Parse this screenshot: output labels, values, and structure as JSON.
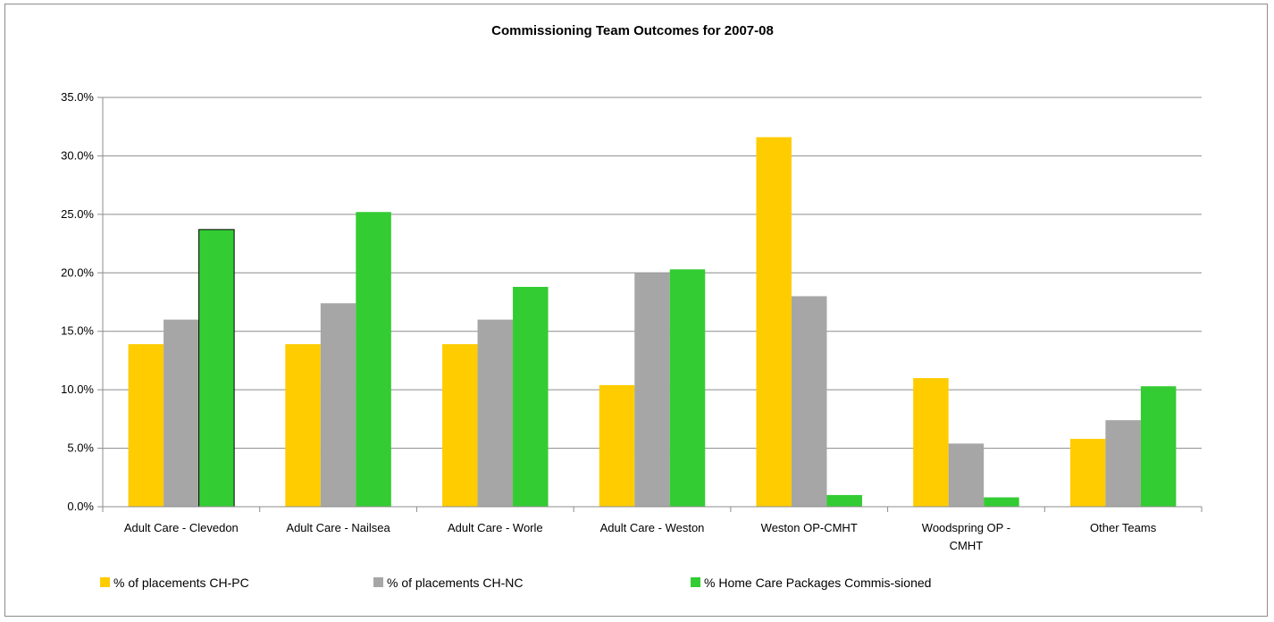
{
  "chart_data": {
    "type": "bar",
    "title": "Commissioning Team Outcomes for 2007-08",
    "xlabel": "",
    "ylabel": "",
    "ylim": [
      0,
      35
    ],
    "yticks": [
      "0.0%",
      "5.0%",
      "10.0%",
      "15.0%",
      "20.0%",
      "25.0%",
      "30.0%",
      "35.0%"
    ],
    "grid": true,
    "legend_position": "bottom",
    "categories": [
      [
        "Adult Care - Clevedon"
      ],
      [
        "Adult Care - Nailsea"
      ],
      [
        "Adult Care - Worle"
      ],
      [
        "Adult Care - Weston"
      ],
      [
        "Weston OP-CMHT"
      ],
      [
        "Woodspring OP -",
        "CMHT"
      ],
      [
        "Other Teams"
      ]
    ],
    "series": [
      {
        "name": "% of placements CH-PC",
        "color": "#FFCC00",
        "values": [
          13.9,
          13.9,
          13.9,
          10.4,
          31.6,
          11.0,
          5.8
        ]
      },
      {
        "name": "% of placements CH-NC",
        "color": "#A6A6A6",
        "values": [
          16.0,
          17.4,
          16.0,
          20.0,
          18.0,
          5.4,
          7.4
        ]
      },
      {
        "name": "% Home Care Packages Commis-sioned",
        "color": "#33CC33",
        "values": [
          23.7,
          25.2,
          18.8,
          20.3,
          1.0,
          0.8,
          10.3
        ]
      }
    ]
  }
}
